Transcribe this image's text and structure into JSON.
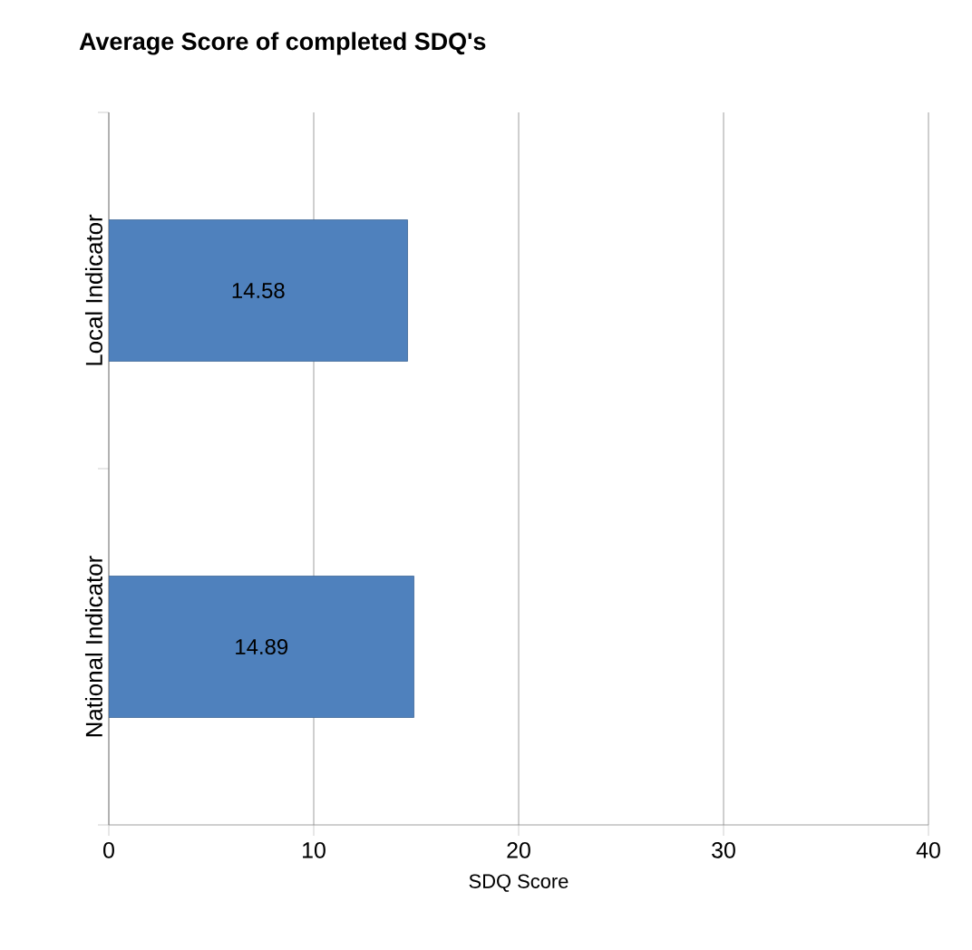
{
  "chart_data": {
    "type": "bar",
    "orientation": "horizontal",
    "title": "Average Score of completed SDQ's",
    "xlabel": "SDQ Score",
    "categories": [
      "Local Indicator",
      "National Indicator"
    ],
    "values": [
      14.58,
      14.89
    ],
    "color": "#4f81bd",
    "data_labels": true,
    "xlim": [
      0,
      40
    ],
    "xticks": [
      0,
      10,
      20,
      30,
      40
    ],
    "grid": "x"
  }
}
